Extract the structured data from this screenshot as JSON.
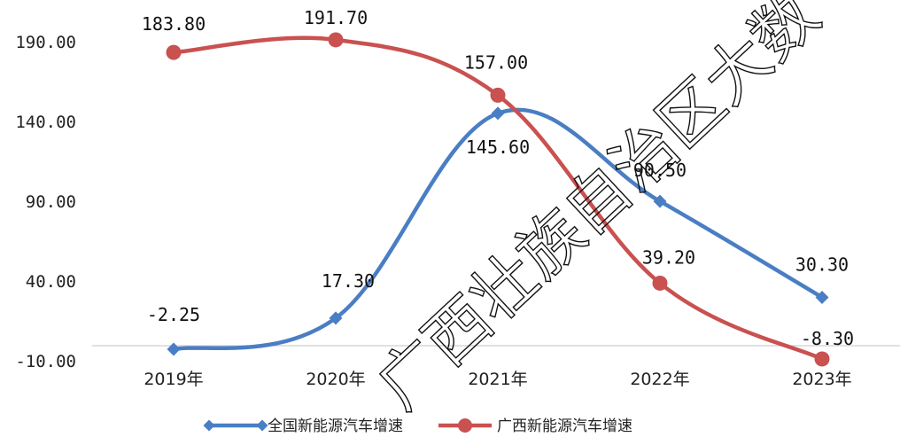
{
  "chart_data": {
    "type": "line",
    "categories": [
      "2019年",
      "2020年",
      "2021年",
      "2022年",
      "2023年"
    ],
    "series": [
      {
        "name": "全国新能源汽车增速",
        "values": [
          -2.25,
          17.3,
          145.6,
          90.5,
          30.3
        ],
        "labels": [
          "-2.25",
          "17.30",
          "145.60",
          "90.50",
          "30.30"
        ],
        "color": "#4a7ec4",
        "marker": "diamond"
      },
      {
        "name": "广西新能源汽车增速",
        "values": [
          183.8,
          191.7,
          157.0,
          39.2,
          -8.3
        ],
        "labels": [
          "183.80",
          "191.70",
          "157.00",
          "39.20",
          "-8.30"
        ],
        "color": "#c9514f",
        "marker": "circle"
      }
    ],
    "yticks": [
      "190.00",
      "140.00",
      "90.00",
      "40.00",
      "-10.00"
    ],
    "ytick_values": [
      190,
      140,
      90,
      40,
      -10
    ],
    "ylim": [
      -10,
      190
    ],
    "grid": false,
    "smooth": true,
    "legend_position": "bottom"
  },
  "watermark": {
    "text": "广西壮族自治区大数"
  }
}
